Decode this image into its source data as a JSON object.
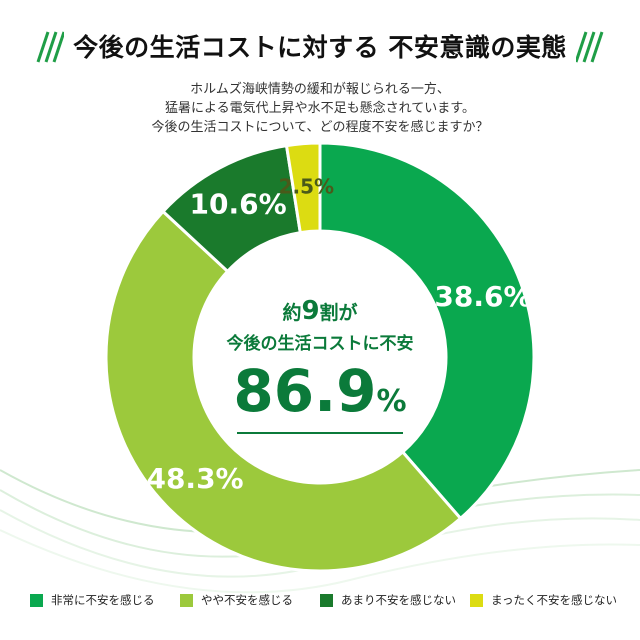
{
  "header": {
    "title": "今後の生活コストに対する 不安意識の実態"
  },
  "subtitle": {
    "line1": "ホルムズ海峡情勢の緩和が報じられる一方、",
    "line2": "猛暑による電気代上昇や水不足も懸念されています。",
    "line3": "今後の生活コストについて、どの程度不安を感じますか？"
  },
  "center": {
    "line1_prefix": "約",
    "line1_number": "9",
    "line1_suffix": "割が",
    "line2": "今後の生活コストに不安",
    "value_number": "86.9",
    "value_unit": "%"
  },
  "colors": {
    "very_anxious": "#0aa84f",
    "somewhat_anxious": "#9cc93c",
    "not_very_anxious": "#1a7a2c",
    "not_at_all": "#dcdc12",
    "accent_dark": "#0b7a3a"
  },
  "chart_data": {
    "type": "pie",
    "donut": true,
    "start": "top, clockwise",
    "categories": [
      "非常に不安を感じる",
      "やや不安を感じる",
      "あまり不安を感じない",
      "まったく不安を感じない"
    ],
    "values": [
      38.6,
      48.3,
      10.6,
      2.5
    ],
    "labels": [
      "38.6%",
      "48.3%",
      "10.6%",
      "2.5%"
    ],
    "colors": [
      "#0aa84f",
      "#9cc93c",
      "#1a7a2c",
      "#dcdc12"
    ],
    "legend_position": "bottom"
  },
  "legend": {
    "items": [
      {
        "label": "非常に不安を感じる"
      },
      {
        "label": "やや不安を感じる"
      },
      {
        "label": "あまり不安を感じない"
      },
      {
        "label": "まったく不安を感じない"
      }
    ]
  }
}
